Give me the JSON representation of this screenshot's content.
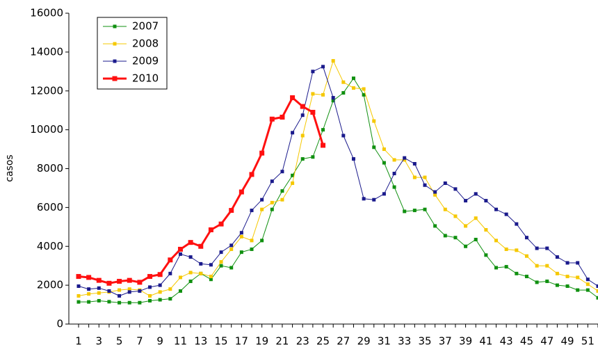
{
  "chart_data": {
    "type": "line",
    "y_label": "casos",
    "categories": [
      "1",
      null,
      "3",
      null,
      "5",
      null,
      "7",
      null,
      "9",
      null,
      "11",
      null,
      "13",
      null,
      "15",
      null,
      "17",
      null,
      "19",
      null,
      "21",
      null,
      "23",
      null,
      "25",
      null,
      "27",
      null,
      "29",
      null,
      "31",
      null,
      "33",
      null,
      "35",
      null,
      "37",
      null,
      "39",
      null,
      "41",
      null,
      "43",
      null,
      "45",
      null,
      "47",
      null,
      "49",
      null,
      "51",
      null
    ],
    "ylim": [
      0,
      16000
    ],
    "yticks": [
      0,
      2000,
      4000,
      6000,
      8000,
      10000,
      12000,
      14000,
      16000
    ],
    "grid": false,
    "legend": "upper left",
    "series": [
      {
        "name": "2007",
        "color": "#109010",
        "values": [
          1140,
          1140,
          1200,
          1150,
          1100,
          1100,
          1100,
          1200,
          1250,
          1300,
          1700,
          2200,
          2600,
          2300,
          3000,
          2900,
          3700,
          3850,
          4300,
          5900,
          6850,
          7650,
          8500,
          8600,
          10000,
          11500,
          11900,
          12650,
          11800,
          9100,
          8300,
          7050,
          5800,
          5850,
          5900,
          5050,
          4550,
          4450,
          4000,
          4350,
          3550,
          2900,
          2950,
          2600,
          2450,
          2150,
          2200,
          2000,
          1950,
          1750,
          1750,
          1350
        ]
      },
      {
        "name": "2008",
        "color": "#f5c800",
        "values": [
          1450,
          1550,
          1600,
          1650,
          1750,
          1800,
          1750,
          1450,
          1650,
          1800,
          2400,
          2650,
          2600,
          2450,
          3200,
          3850,
          4500,
          4300,
          5900,
          6250,
          6400,
          7250,
          9700,
          11850,
          11800,
          13550,
          12450,
          12150,
          12100,
          10450,
          9000,
          8450,
          8450,
          7550,
          7550,
          6650,
          5900,
          5550,
          5050,
          5450,
          4850,
          4300,
          3850,
          3800,
          3500,
          3000,
          3000,
          2600,
          2450,
          2400,
          2050,
          1700
        ]
      },
      {
        "name": "2009",
        "color": "#1a1a8c",
        "values": [
          1950,
          1800,
          1850,
          1700,
          1450,
          1650,
          1700,
          1900,
          2000,
          2600,
          3600,
          3450,
          3100,
          3050,
          3700,
          4050,
          4700,
          5850,
          6400,
          7350,
          7850,
          9850,
          10750,
          13000,
          13250,
          11650,
          9700,
          8500,
          6450,
          6400,
          6700,
          7750,
          8550,
          8250,
          7150,
          6800,
          7250,
          6950,
          6350,
          6700,
          6350,
          5900,
          5650,
          5150,
          4450,
          3900,
          3900,
          3450,
          3150,
          3150,
          2300,
          1950
        ]
      },
      {
        "name": "2010",
        "color": "#ff1010",
        "values": [
          2450,
          2400,
          2250,
          2100,
          2200,
          2250,
          2150,
          2450,
          2550,
          3300,
          3850,
          4200,
          4000,
          4850,
          5150,
          5850,
          6800,
          7700,
          8800,
          10550,
          10650,
          11650,
          11200,
          10900,
          9200,
          null,
          null,
          null,
          null,
          null,
          null,
          null,
          null,
          null,
          null,
          null,
          null,
          null,
          null,
          null,
          null,
          null,
          null,
          null,
          null,
          null,
          null,
          null,
          null,
          null,
          null,
          null
        ]
      }
    ]
  }
}
